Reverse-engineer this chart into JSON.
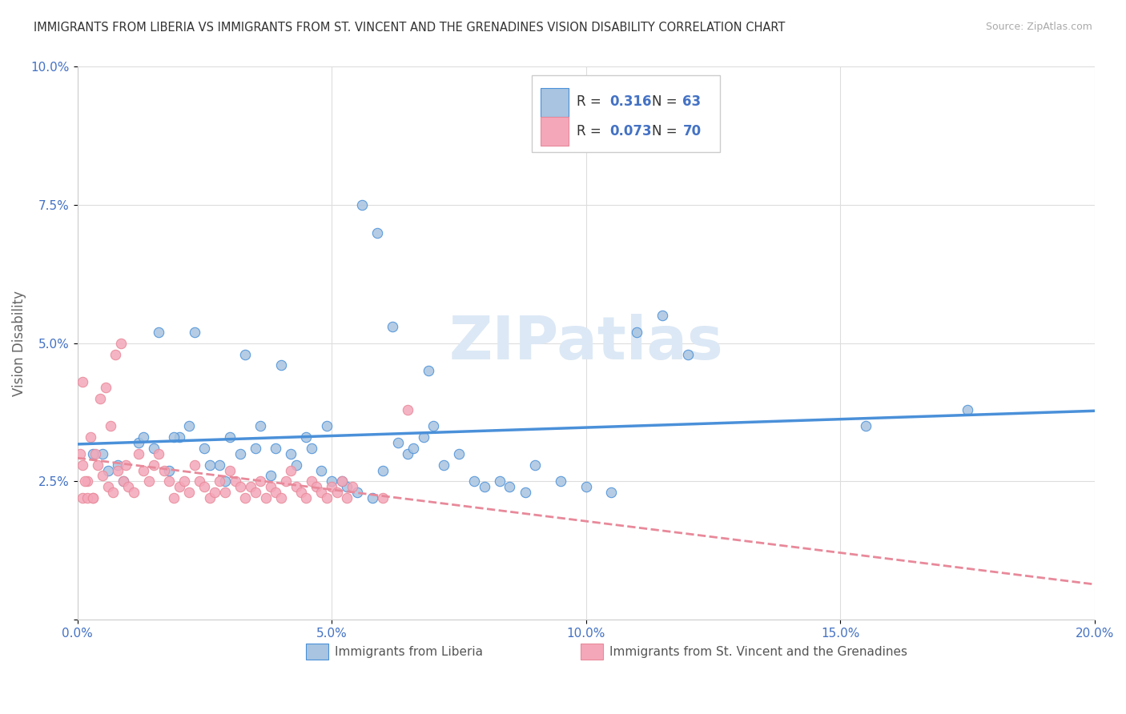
{
  "title": "IMMIGRANTS FROM LIBERIA VS IMMIGRANTS FROM ST. VINCENT AND THE GRENADINES VISION DISABILITY CORRELATION CHART",
  "source": "Source: ZipAtlas.com",
  "ylabel": "Vision Disability",
  "xlim": [
    0.0,
    0.2
  ],
  "ylim": [
    0.0,
    0.1
  ],
  "xticks": [
    0.0,
    0.05,
    0.1,
    0.15,
    0.2
  ],
  "xtick_labels": [
    "0.0%",
    "5.0%",
    "10.0%",
    "15.0%",
    "20.0%"
  ],
  "yticks": [
    0.0,
    0.025,
    0.05,
    0.075,
    0.1
  ],
  "ytick_labels": [
    "",
    "2.5%",
    "5.0%",
    "7.5%",
    "10.0%"
  ],
  "color_blue": "#a8c4e0",
  "color_pink": "#f4a7b9",
  "color_blue_line": "#4a90d9",
  "color_pink_line": "#e8899a",
  "legend_label1": "Immigrants from Liberia",
  "legend_label2": "Immigrants from St. Vincent and the Grenadines",
  "blue_scatter_x": [
    0.005,
    0.008,
    0.012,
    0.015,
    0.018,
    0.02,
    0.022,
    0.025,
    0.028,
    0.03,
    0.033,
    0.035,
    0.038,
    0.04,
    0.042,
    0.045,
    0.048,
    0.05,
    0.053,
    0.055,
    0.058,
    0.06,
    0.063,
    0.065,
    0.068,
    0.07,
    0.072,
    0.075,
    0.078,
    0.08,
    0.083,
    0.085,
    0.088,
    0.09,
    0.095,
    0.1,
    0.105,
    0.11,
    0.115,
    0.12,
    0.003,
    0.006,
    0.009,
    0.013,
    0.016,
    0.019,
    0.023,
    0.026,
    0.029,
    0.032,
    0.036,
    0.039,
    0.043,
    0.046,
    0.049,
    0.052,
    0.056,
    0.059,
    0.062,
    0.066,
    0.069,
    0.155,
    0.175
  ],
  "blue_scatter_y": [
    0.03,
    0.028,
    0.032,
    0.031,
    0.027,
    0.033,
    0.035,
    0.031,
    0.028,
    0.033,
    0.048,
    0.031,
    0.026,
    0.046,
    0.03,
    0.033,
    0.027,
    0.025,
    0.024,
    0.023,
    0.022,
    0.027,
    0.032,
    0.03,
    0.033,
    0.035,
    0.028,
    0.03,
    0.025,
    0.024,
    0.025,
    0.024,
    0.023,
    0.028,
    0.025,
    0.024,
    0.023,
    0.052,
    0.055,
    0.048,
    0.03,
    0.027,
    0.025,
    0.033,
    0.052,
    0.033,
    0.052,
    0.028,
    0.025,
    0.03,
    0.035,
    0.031,
    0.028,
    0.031,
    0.035,
    0.025,
    0.075,
    0.07,
    0.053,
    0.031,
    0.045,
    0.035,
    0.038
  ],
  "pink_scatter_x": [
    0.002,
    0.003,
    0.004,
    0.005,
    0.006,
    0.007,
    0.008,
    0.009,
    0.01,
    0.011,
    0.012,
    0.013,
    0.014,
    0.015,
    0.016,
    0.017,
    0.018,
    0.019,
    0.02,
    0.021,
    0.022,
    0.023,
    0.024,
    0.025,
    0.026,
    0.027,
    0.028,
    0.029,
    0.03,
    0.031,
    0.032,
    0.033,
    0.034,
    0.035,
    0.036,
    0.037,
    0.038,
    0.039,
    0.04,
    0.041,
    0.042,
    0.043,
    0.044,
    0.045,
    0.046,
    0.047,
    0.048,
    0.049,
    0.05,
    0.051,
    0.052,
    0.053,
    0.054,
    0.001,
    0.0015,
    0.0025,
    0.0035,
    0.0045,
    0.0055,
    0.0065,
    0.0075,
    0.0085,
    0.0095,
    0.0005,
    0.001,
    0.002,
    0.003,
    0.06,
    0.065,
    0.001
  ],
  "pink_scatter_y": [
    0.025,
    0.022,
    0.028,
    0.026,
    0.024,
    0.023,
    0.027,
    0.025,
    0.024,
    0.023,
    0.03,
    0.027,
    0.025,
    0.028,
    0.03,
    0.027,
    0.025,
    0.022,
    0.024,
    0.025,
    0.023,
    0.028,
    0.025,
    0.024,
    0.022,
    0.023,
    0.025,
    0.023,
    0.027,
    0.025,
    0.024,
    0.022,
    0.024,
    0.023,
    0.025,
    0.022,
    0.024,
    0.023,
    0.022,
    0.025,
    0.027,
    0.024,
    0.023,
    0.022,
    0.025,
    0.024,
    0.023,
    0.022,
    0.024,
    0.023,
    0.025,
    0.022,
    0.024,
    0.028,
    0.025,
    0.033,
    0.03,
    0.04,
    0.042,
    0.035,
    0.048,
    0.05,
    0.028,
    0.03,
    0.022,
    0.022,
    0.022,
    0.022,
    0.038,
    0.043,
    0.058
  ]
}
